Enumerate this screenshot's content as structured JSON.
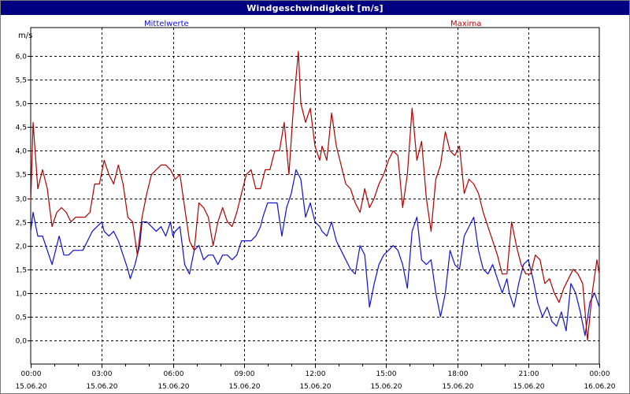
{
  "window": {
    "title": "Windgeschwindigkeit [m/s]"
  },
  "chart_data": {
    "type": "line",
    "title": "Windgeschwindigkeit [m/s]",
    "ylabel": "m/s",
    "ylim": [
      -0.5,
      6.6
    ],
    "xlim": [
      0,
      24
    ],
    "grid": true,
    "x_ticks": [
      {
        "time": "00:00",
        "date": "15.06.20",
        "h": 0
      },
      {
        "time": "03:00",
        "date": "15.06.20",
        "h": 3
      },
      {
        "time": "06:00",
        "date": "15.06.20",
        "h": 6
      },
      {
        "time": "09:00",
        "date": "15.06.20",
        "h": 9
      },
      {
        "time": "12:00",
        "date": "15.06.20",
        "h": 12
      },
      {
        "time": "15:00",
        "date": "15.06.20",
        "h": 15
      },
      {
        "time": "18:00",
        "date": "15.06.20",
        "h": 18
      },
      {
        "time": "21:00",
        "date": "15.06.20",
        "h": 21
      },
      {
        "time": "00:00",
        "date": "16.06.20",
        "h": 24
      }
    ],
    "y_ticks": [
      "0,0",
      "0,5",
      "1,0",
      "1,5",
      "2,0",
      "2,5",
      "3,0",
      "3,5",
      "4,0",
      "4,5",
      "5,0",
      "5,5",
      "6,0"
    ],
    "y_tick_values": [
      0,
      0.5,
      1,
      1.5,
      2,
      2.5,
      3,
      3.5,
      4,
      4.5,
      5,
      5.5,
      6
    ],
    "series": [
      {
        "name": "Mittelwerte",
        "color": "#1010d0",
        "points": [
          [
            0.0,
            2.3
          ],
          [
            0.1,
            2.7
          ],
          [
            0.3,
            2.2
          ],
          [
            0.5,
            2.2
          ],
          [
            0.7,
            1.9
          ],
          [
            0.9,
            1.6
          ],
          [
            1.1,
            2.0
          ],
          [
            1.2,
            2.2
          ],
          [
            1.4,
            1.8
          ],
          [
            1.6,
            1.8
          ],
          [
            1.8,
            1.9
          ],
          [
            2.0,
            1.9
          ],
          [
            2.2,
            1.9
          ],
          [
            2.4,
            2.1
          ],
          [
            2.6,
            2.3
          ],
          [
            2.8,
            2.4
          ],
          [
            3.0,
            2.5
          ],
          [
            3.1,
            2.3
          ],
          [
            3.3,
            2.2
          ],
          [
            3.5,
            2.3
          ],
          [
            3.7,
            2.1
          ],
          [
            3.9,
            1.8
          ],
          [
            4.1,
            1.5
          ],
          [
            4.2,
            1.3
          ],
          [
            4.4,
            1.6
          ],
          [
            4.6,
            2.0
          ],
          [
            4.7,
            2.5
          ],
          [
            4.9,
            2.5
          ],
          [
            5.1,
            2.4
          ],
          [
            5.3,
            2.3
          ],
          [
            5.5,
            2.4
          ],
          [
            5.7,
            2.2
          ],
          [
            5.9,
            2.5
          ],
          [
            6.0,
            2.2
          ],
          [
            6.1,
            2.3
          ],
          [
            6.3,
            2.4
          ],
          [
            6.5,
            1.6
          ],
          [
            6.7,
            1.4
          ],
          [
            6.9,
            1.9
          ],
          [
            7.1,
            2.0
          ],
          [
            7.3,
            1.7
          ],
          [
            7.5,
            1.8
          ],
          [
            7.7,
            1.8
          ],
          [
            7.9,
            1.6
          ],
          [
            8.1,
            1.8
          ],
          [
            8.3,
            1.8
          ],
          [
            8.5,
            1.7
          ],
          [
            8.7,
            1.8
          ],
          [
            8.9,
            2.1
          ],
          [
            9.1,
            2.1
          ],
          [
            9.3,
            2.1
          ],
          [
            9.5,
            2.2
          ],
          [
            9.7,
            2.4
          ],
          [
            9.8,
            2.6
          ],
          [
            10.0,
            2.9
          ],
          [
            10.2,
            2.9
          ],
          [
            10.4,
            2.9
          ],
          [
            10.6,
            2.2
          ],
          [
            10.8,
            2.8
          ],
          [
            11.0,
            3.1
          ],
          [
            11.2,
            3.6
          ],
          [
            11.4,
            3.4
          ],
          [
            11.6,
            2.6
          ],
          [
            11.8,
            2.9
          ],
          [
            12.0,
            2.5
          ],
          [
            12.2,
            2.4
          ],
          [
            12.3,
            2.3
          ],
          [
            12.5,
            2.2
          ],
          [
            12.7,
            2.5
          ],
          [
            12.9,
            2.1
          ],
          [
            13.1,
            1.9
          ],
          [
            13.3,
            1.7
          ],
          [
            13.5,
            1.5
          ],
          [
            13.7,
            1.4
          ],
          [
            13.9,
            2.0
          ],
          [
            14.1,
            1.8
          ],
          [
            14.3,
            0.7
          ],
          [
            14.5,
            1.2
          ],
          [
            14.7,
            1.6
          ],
          [
            14.9,
            1.8
          ],
          [
            15.1,
            1.9
          ],
          [
            15.3,
            2.0
          ],
          [
            15.5,
            1.9
          ],
          [
            15.7,
            1.6
          ],
          [
            15.9,
            1.1
          ],
          [
            16.1,
            2.3
          ],
          [
            16.3,
            2.6
          ],
          [
            16.5,
            1.7
          ],
          [
            16.7,
            1.6
          ],
          [
            16.9,
            1.7
          ],
          [
            17.1,
            1.0
          ],
          [
            17.3,
            0.5
          ],
          [
            17.5,
            1.0
          ],
          [
            17.7,
            1.9
          ],
          [
            17.9,
            1.6
          ],
          [
            18.1,
            1.5
          ],
          [
            18.3,
            2.2
          ],
          [
            18.5,
            2.4
          ],
          [
            18.7,
            2.6
          ],
          [
            18.9,
            1.9
          ],
          [
            19.1,
            1.5
          ],
          [
            19.3,
            1.4
          ],
          [
            19.5,
            1.6
          ],
          [
            19.7,
            1.3
          ],
          [
            19.9,
            1.0
          ],
          [
            20.1,
            1.3
          ],
          [
            20.2,
            1.0
          ],
          [
            20.4,
            0.7
          ],
          [
            20.6,
            1.2
          ],
          [
            20.8,
            1.6
          ],
          [
            21.0,
            1.7
          ],
          [
            21.2,
            1.3
          ],
          [
            21.4,
            0.8
          ],
          [
            21.6,
            0.5
          ],
          [
            21.8,
            0.7
          ],
          [
            22.0,
            0.4
          ],
          [
            22.2,
            0.3
          ],
          [
            22.4,
            0.6
          ],
          [
            22.6,
            0.2
          ],
          [
            22.8,
            1.2
          ],
          [
            23.0,
            1.0
          ],
          [
            23.2,
            0.6
          ],
          [
            23.4,
            0.1
          ],
          [
            23.6,
            0.8
          ],
          [
            23.8,
            1.0
          ],
          [
            24.0,
            0.7
          ]
        ]
      },
      {
        "name": "Maxima",
        "color": "#b00000",
        "points": [
          [
            0.0,
            2.9
          ],
          [
            0.1,
            4.6
          ],
          [
            0.3,
            3.2
          ],
          [
            0.5,
            3.6
          ],
          [
            0.7,
            3.2
          ],
          [
            0.9,
            2.4
          ],
          [
            1.1,
            2.7
          ],
          [
            1.3,
            2.8
          ],
          [
            1.5,
            2.7
          ],
          [
            1.7,
            2.5
          ],
          [
            1.9,
            2.6
          ],
          [
            2.1,
            2.6
          ],
          [
            2.3,
            2.6
          ],
          [
            2.5,
            2.7
          ],
          [
            2.7,
            3.3
          ],
          [
            2.9,
            3.3
          ],
          [
            3.1,
            3.8
          ],
          [
            3.3,
            3.5
          ],
          [
            3.5,
            3.3
          ],
          [
            3.7,
            3.7
          ],
          [
            3.9,
            3.3
          ],
          [
            4.1,
            2.6
          ],
          [
            4.3,
            2.5
          ],
          [
            4.5,
            1.8
          ],
          [
            4.7,
            2.6
          ],
          [
            4.9,
            3.1
          ],
          [
            5.1,
            3.5
          ],
          [
            5.3,
            3.6
          ],
          [
            5.5,
            3.7
          ],
          [
            5.7,
            3.7
          ],
          [
            5.9,
            3.6
          ],
          [
            6.1,
            3.4
          ],
          [
            6.3,
            3.5
          ],
          [
            6.5,
            2.8
          ],
          [
            6.7,
            2.1
          ],
          [
            6.9,
            1.9
          ],
          [
            7.1,
            2.9
          ],
          [
            7.3,
            2.8
          ],
          [
            7.5,
            2.6
          ],
          [
            7.7,
            2.0
          ],
          [
            7.9,
            2.5
          ],
          [
            8.1,
            2.8
          ],
          [
            8.3,
            2.5
          ],
          [
            8.5,
            2.4
          ],
          [
            8.7,
            2.7
          ],
          [
            8.9,
            3.1
          ],
          [
            9.1,
            3.5
          ],
          [
            9.3,
            3.6
          ],
          [
            9.5,
            3.2
          ],
          [
            9.7,
            3.2
          ],
          [
            9.9,
            3.6
          ],
          [
            10.1,
            3.6
          ],
          [
            10.3,
            4.0
          ],
          [
            10.5,
            4.0
          ],
          [
            10.7,
            4.6
          ],
          [
            10.9,
            3.5
          ],
          [
            11.1,
            5.0
          ],
          [
            11.3,
            6.1
          ],
          [
            11.4,
            5.0
          ],
          [
            11.6,
            4.6
          ],
          [
            11.8,
            4.9
          ],
          [
            12.0,
            4.1
          ],
          [
            12.2,
            3.8
          ],
          [
            12.3,
            4.1
          ],
          [
            12.5,
            3.8
          ],
          [
            12.7,
            4.8
          ],
          [
            12.9,
            4.1
          ],
          [
            13.1,
            3.7
          ],
          [
            13.3,
            3.3
          ],
          [
            13.5,
            3.2
          ],
          [
            13.7,
            2.9
          ],
          [
            13.9,
            2.7
          ],
          [
            14.1,
            3.2
          ],
          [
            14.3,
            2.8
          ],
          [
            14.5,
            3.0
          ],
          [
            14.7,
            3.3
          ],
          [
            14.9,
            3.5
          ],
          [
            15.1,
            3.8
          ],
          [
            15.3,
            4.0
          ],
          [
            15.5,
            3.9
          ],
          [
            15.7,
            2.8
          ],
          [
            15.9,
            3.5
          ],
          [
            16.1,
            4.9
          ],
          [
            16.3,
            3.8
          ],
          [
            16.5,
            4.2
          ],
          [
            16.7,
            3.0
          ],
          [
            16.9,
            2.3
          ],
          [
            17.1,
            3.4
          ],
          [
            17.3,
            3.7
          ],
          [
            17.5,
            4.4
          ],
          [
            17.7,
            4.0
          ],
          [
            17.9,
            3.9
          ],
          [
            18.1,
            4.1
          ],
          [
            18.3,
            3.1
          ],
          [
            18.5,
            3.4
          ],
          [
            18.7,
            3.3
          ],
          [
            18.9,
            3.1
          ],
          [
            19.1,
            2.7
          ],
          [
            19.3,
            2.4
          ],
          [
            19.5,
            2.1
          ],
          [
            19.7,
            1.8
          ],
          [
            19.9,
            1.4
          ],
          [
            20.1,
            1.4
          ],
          [
            20.3,
            2.5
          ],
          [
            20.5,
            2.0
          ],
          [
            20.7,
            1.6
          ],
          [
            20.9,
            1.4
          ],
          [
            21.1,
            1.4
          ],
          [
            21.3,
            1.8
          ],
          [
            21.5,
            1.7
          ],
          [
            21.7,
            1.2
          ],
          [
            21.9,
            1.3
          ],
          [
            22.1,
            1.0
          ],
          [
            22.3,
            0.8
          ],
          [
            22.5,
            1.1
          ],
          [
            22.7,
            1.3
          ],
          [
            22.9,
            1.5
          ],
          [
            23.1,
            1.4
          ],
          [
            23.3,
            1.2
          ],
          [
            23.5,
            0.0
          ],
          [
            23.7,
            1.0
          ],
          [
            23.9,
            1.7
          ],
          [
            24.0,
            1.4
          ]
        ]
      }
    ]
  }
}
